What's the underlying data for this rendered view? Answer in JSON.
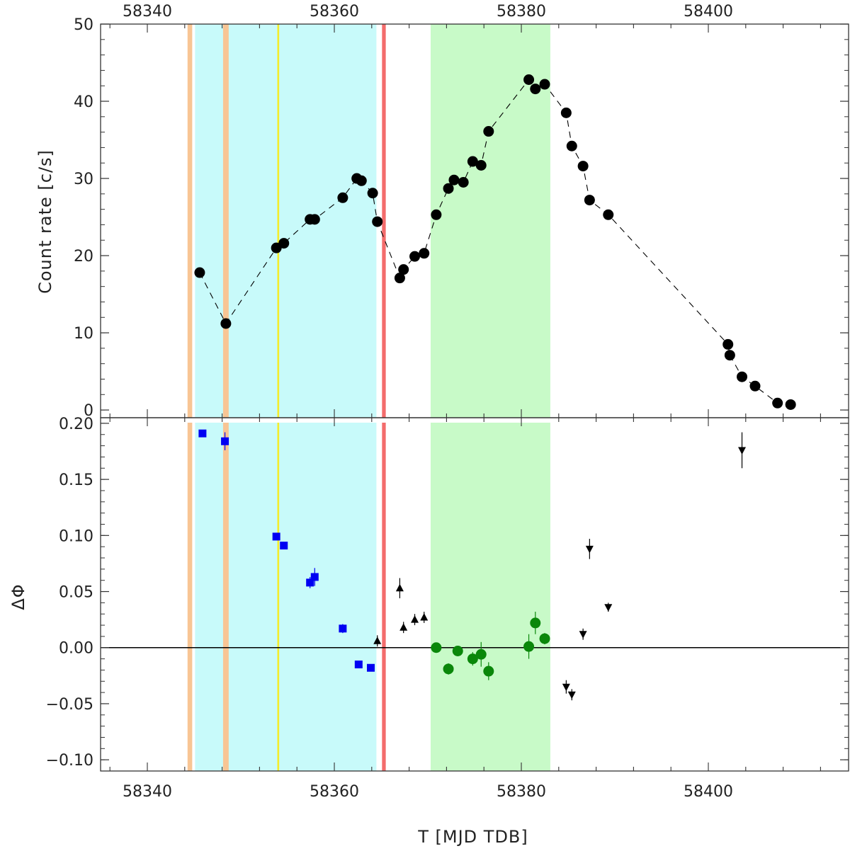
{
  "chart_data": {
    "type": "scatter",
    "xlabel": "T [MJD TDB]",
    "xlim": [
      58335,
      58415
    ],
    "x_ticks": [
      58340,
      58360,
      58380,
      58400
    ],
    "shaded_regions": [
      {
        "x0": 58345.1,
        "x1": 58364.5,
        "color": "#c8fafa"
      },
      {
        "x0": 58370.3,
        "x1": 58383.1,
        "color": "#c8fac8"
      },
      {
        "x0": 58344.3,
        "x1": 58344.8,
        "color": "#f8c594"
      },
      {
        "x0": 58348.1,
        "x1": 58348.7,
        "color": "#f8c594"
      },
      {
        "x0": 58353.9,
        "x1": 58354.1,
        "color": "#f4ec2c"
      },
      {
        "x0": 58365.1,
        "x1": 58365.5,
        "color": "#f36c6c"
      }
    ],
    "panels": [
      {
        "name": "top",
        "ylabel": "Count rate [c/s]",
        "ylim": [
          -1,
          50
        ],
        "y_ticks": [
          0,
          10,
          20,
          30,
          40,
          50
        ],
        "y_tick_labels": [
          "0",
          "10",
          "20",
          "30",
          "40",
          "50"
        ],
        "series": [
          {
            "marker": "circle",
            "color": "#000000",
            "line": "dashed",
            "points": [
              [
                58345.6,
                17.8
              ],
              [
                58348.4,
                11.2
              ],
              [
                58353.8,
                21.0
              ],
              [
                58354.6,
                21.6
              ],
              [
                58357.4,
                24.7
              ],
              [
                58357.9,
                24.7
              ],
              [
                58360.9,
                27.5
              ],
              [
                58362.4,
                30.0
              ],
              [
                58362.9,
                29.7
              ],
              [
                58364.1,
                28.1
              ],
              [
                58364.6,
                24.4
              ],
              [
                58367.0,
                17.1
              ],
              [
                58367.4,
                18.2
              ],
              [
                58368.6,
                19.9
              ],
              [
                58369.6,
                20.3
              ],
              [
                58370.9,
                25.3
              ],
              [
                58372.2,
                28.7
              ],
              [
                58372.8,
                29.8
              ],
              [
                58373.8,
                29.5
              ],
              [
                58374.8,
                32.2
              ],
              [
                58375.7,
                31.7
              ],
              [
                58376.5,
                36.1
              ],
              [
                58380.8,
                42.8
              ],
              [
                58381.5,
                41.6
              ],
              [
                58382.5,
                42.2
              ],
              [
                58384.8,
                38.5
              ],
              [
                58385.4,
                34.2
              ],
              [
                58386.6,
                31.6
              ],
              [
                58387.3,
                27.2
              ],
              [
                58389.3,
                25.3
              ],
              [
                58402.1,
                8.5
              ],
              [
                58402.3,
                7.1
              ],
              [
                58403.6,
                4.3
              ],
              [
                58405.0,
                3.1
              ],
              [
                58407.4,
                0.9
              ],
              [
                58408.8,
                0.7
              ]
            ]
          }
        ]
      },
      {
        "name": "bottom",
        "ylabel": "ΔΦ",
        "ylim": [
          -0.11,
          0.205
        ],
        "y_ticks": [
          -0.1,
          -0.05,
          0,
          0.05,
          0.1,
          0.15,
          0.2
        ],
        "y_tick_labels": [
          "−0.10",
          "−0.05",
          "0.00",
          "0.05",
          "0.10",
          "0.15",
          "0.20"
        ],
        "hline": 0,
        "series": [
          {
            "marker": "square",
            "color": "#0000f2",
            "points": [
              [
                58345.9,
                0.191,
                0.003
              ],
              [
                58348.3,
                0.184,
                0.008
              ],
              [
                58353.8,
                0.099,
                0.003
              ],
              [
                58354.6,
                0.091,
                0.003
              ],
              [
                58357.4,
                0.058,
                0.005
              ],
              [
                58357.9,
                0.063,
                0.008
              ],
              [
                58360.9,
                0.017,
                0.004
              ],
              [
                58362.6,
                -0.015,
                0.002
              ],
              [
                58363.9,
                -0.018,
                0.002
              ]
            ]
          },
          {
            "marker": "triangle-up",
            "color": "#000000",
            "points": [
              [
                58364.6,
                0.006,
                0.005
              ],
              [
                58367.0,
                0.053,
                0.009
              ],
              [
                58367.4,
                0.018,
                0.005
              ],
              [
                58368.6,
                0.025,
                0.005
              ],
              [
                58369.6,
                0.027,
                0.005
              ]
            ]
          },
          {
            "marker": "circle",
            "color": "#0a870a",
            "points": [
              [
                58370.9,
                0.0,
                0.003
              ],
              [
                58372.2,
                -0.019,
                0.005
              ],
              [
                58373.2,
                -0.003,
                0.004
              ],
              [
                58374.8,
                -0.01,
                0.006
              ],
              [
                58375.7,
                -0.006,
                0.011
              ],
              [
                58376.5,
                -0.021,
                0.008
              ],
              [
                58380.8,
                0.001,
                0.011
              ],
              [
                58381.5,
                0.022,
                0.01
              ],
              [
                58382.5,
                0.008,
                0.005
              ]
            ]
          },
          {
            "marker": "triangle-down",
            "color": "#000000",
            "points": [
              [
                58384.8,
                -0.035,
                0.006
              ],
              [
                58385.4,
                -0.042,
                0.005
              ],
              [
                58386.6,
                0.012,
                0.005
              ],
              [
                58387.3,
                0.088,
                0.009
              ],
              [
                58389.3,
                0.036,
                0.004
              ],
              [
                58403.6,
                0.176,
                0.016
              ]
            ]
          }
        ]
      }
    ]
  }
}
